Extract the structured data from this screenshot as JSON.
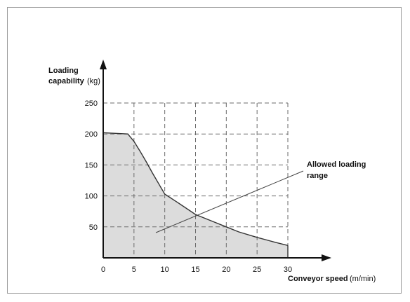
{
  "chart_data": {
    "type": "area",
    "title": "",
    "xlabel": "Conveyor speed",
    "xlabel_unit": "(m/min)",
    "ylabel_line1": "Loading",
    "ylabel_line2": "capability",
    "ylabel_unit": "(kg)",
    "xlim": [
      0,
      30
    ],
    "ylim": [
      0,
      250
    ],
    "x_ticks": [
      0,
      5,
      10,
      15,
      20,
      25,
      30
    ],
    "y_ticks": [
      50,
      100,
      150,
      200,
      250
    ],
    "grid": true,
    "grid_style": "dashed",
    "series": [
      {
        "x": [
          0,
          4,
          5,
          6,
          7,
          8,
          9,
          10,
          12,
          15,
          18,
          20,
          22,
          25,
          28,
          30
        ],
        "y": [
          202,
          200,
          188,
          172,
          155,
          137,
          120,
          103,
          90,
          70,
          58,
          50,
          42,
          33,
          25,
          20
        ]
      }
    ],
    "fill_color": "#dcdcdc",
    "line_color": "#333333",
    "annotation": {
      "text_line1": "Allowed loading",
      "text_line2": "range"
    }
  }
}
